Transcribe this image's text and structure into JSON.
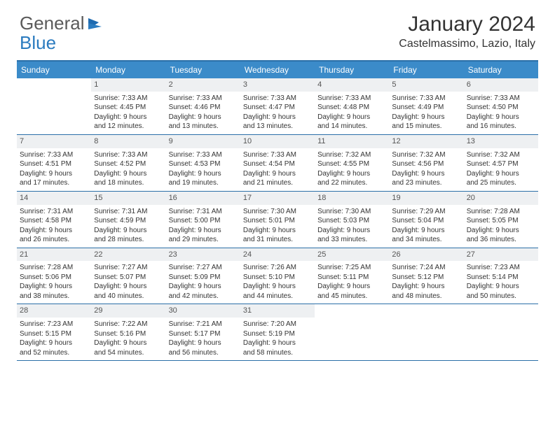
{
  "brand": {
    "word1": "General",
    "word2": "Blue"
  },
  "header": {
    "month_title": "January 2024",
    "location": "Castelmassimo, Lazio, Italy"
  },
  "colors": {
    "header_bar": "#3b8bc9",
    "rule": "#2b6fa8",
    "daynum_bg": "#eef0f2",
    "text": "#333333",
    "logo_gray": "#5a5a5a",
    "logo_blue": "#2b7bbf"
  },
  "days_of_week": [
    "Sunday",
    "Monday",
    "Tuesday",
    "Wednesday",
    "Thursday",
    "Friday",
    "Saturday"
  ],
  "weeks": [
    [
      {
        "n": "",
        "l1": "",
        "l2": "",
        "l3": "",
        "l4": ""
      },
      {
        "n": "1",
        "l1": "Sunrise: 7:33 AM",
        "l2": "Sunset: 4:45 PM",
        "l3": "Daylight: 9 hours",
        "l4": "and 12 minutes."
      },
      {
        "n": "2",
        "l1": "Sunrise: 7:33 AM",
        "l2": "Sunset: 4:46 PM",
        "l3": "Daylight: 9 hours",
        "l4": "and 13 minutes."
      },
      {
        "n": "3",
        "l1": "Sunrise: 7:33 AM",
        "l2": "Sunset: 4:47 PM",
        "l3": "Daylight: 9 hours",
        "l4": "and 13 minutes."
      },
      {
        "n": "4",
        "l1": "Sunrise: 7:33 AM",
        "l2": "Sunset: 4:48 PM",
        "l3": "Daylight: 9 hours",
        "l4": "and 14 minutes."
      },
      {
        "n": "5",
        "l1": "Sunrise: 7:33 AM",
        "l2": "Sunset: 4:49 PM",
        "l3": "Daylight: 9 hours",
        "l4": "and 15 minutes."
      },
      {
        "n": "6",
        "l1": "Sunrise: 7:33 AM",
        "l2": "Sunset: 4:50 PM",
        "l3": "Daylight: 9 hours",
        "l4": "and 16 minutes."
      }
    ],
    [
      {
        "n": "7",
        "l1": "Sunrise: 7:33 AM",
        "l2": "Sunset: 4:51 PM",
        "l3": "Daylight: 9 hours",
        "l4": "and 17 minutes."
      },
      {
        "n": "8",
        "l1": "Sunrise: 7:33 AM",
        "l2": "Sunset: 4:52 PM",
        "l3": "Daylight: 9 hours",
        "l4": "and 18 minutes."
      },
      {
        "n": "9",
        "l1": "Sunrise: 7:33 AM",
        "l2": "Sunset: 4:53 PM",
        "l3": "Daylight: 9 hours",
        "l4": "and 19 minutes."
      },
      {
        "n": "10",
        "l1": "Sunrise: 7:33 AM",
        "l2": "Sunset: 4:54 PM",
        "l3": "Daylight: 9 hours",
        "l4": "and 21 minutes."
      },
      {
        "n": "11",
        "l1": "Sunrise: 7:32 AM",
        "l2": "Sunset: 4:55 PM",
        "l3": "Daylight: 9 hours",
        "l4": "and 22 minutes."
      },
      {
        "n": "12",
        "l1": "Sunrise: 7:32 AM",
        "l2": "Sunset: 4:56 PM",
        "l3": "Daylight: 9 hours",
        "l4": "and 23 minutes."
      },
      {
        "n": "13",
        "l1": "Sunrise: 7:32 AM",
        "l2": "Sunset: 4:57 PM",
        "l3": "Daylight: 9 hours",
        "l4": "and 25 minutes."
      }
    ],
    [
      {
        "n": "14",
        "l1": "Sunrise: 7:31 AM",
        "l2": "Sunset: 4:58 PM",
        "l3": "Daylight: 9 hours",
        "l4": "and 26 minutes."
      },
      {
        "n": "15",
        "l1": "Sunrise: 7:31 AM",
        "l2": "Sunset: 4:59 PM",
        "l3": "Daylight: 9 hours",
        "l4": "and 28 minutes."
      },
      {
        "n": "16",
        "l1": "Sunrise: 7:31 AM",
        "l2": "Sunset: 5:00 PM",
        "l3": "Daylight: 9 hours",
        "l4": "and 29 minutes."
      },
      {
        "n": "17",
        "l1": "Sunrise: 7:30 AM",
        "l2": "Sunset: 5:01 PM",
        "l3": "Daylight: 9 hours",
        "l4": "and 31 minutes."
      },
      {
        "n": "18",
        "l1": "Sunrise: 7:30 AM",
        "l2": "Sunset: 5:03 PM",
        "l3": "Daylight: 9 hours",
        "l4": "and 33 minutes."
      },
      {
        "n": "19",
        "l1": "Sunrise: 7:29 AM",
        "l2": "Sunset: 5:04 PM",
        "l3": "Daylight: 9 hours",
        "l4": "and 34 minutes."
      },
      {
        "n": "20",
        "l1": "Sunrise: 7:28 AM",
        "l2": "Sunset: 5:05 PM",
        "l3": "Daylight: 9 hours",
        "l4": "and 36 minutes."
      }
    ],
    [
      {
        "n": "21",
        "l1": "Sunrise: 7:28 AM",
        "l2": "Sunset: 5:06 PM",
        "l3": "Daylight: 9 hours",
        "l4": "and 38 minutes."
      },
      {
        "n": "22",
        "l1": "Sunrise: 7:27 AM",
        "l2": "Sunset: 5:07 PM",
        "l3": "Daylight: 9 hours",
        "l4": "and 40 minutes."
      },
      {
        "n": "23",
        "l1": "Sunrise: 7:27 AM",
        "l2": "Sunset: 5:09 PM",
        "l3": "Daylight: 9 hours",
        "l4": "and 42 minutes."
      },
      {
        "n": "24",
        "l1": "Sunrise: 7:26 AM",
        "l2": "Sunset: 5:10 PM",
        "l3": "Daylight: 9 hours",
        "l4": "and 44 minutes."
      },
      {
        "n": "25",
        "l1": "Sunrise: 7:25 AM",
        "l2": "Sunset: 5:11 PM",
        "l3": "Daylight: 9 hours",
        "l4": "and 45 minutes."
      },
      {
        "n": "26",
        "l1": "Sunrise: 7:24 AM",
        "l2": "Sunset: 5:12 PM",
        "l3": "Daylight: 9 hours",
        "l4": "and 48 minutes."
      },
      {
        "n": "27",
        "l1": "Sunrise: 7:23 AM",
        "l2": "Sunset: 5:14 PM",
        "l3": "Daylight: 9 hours",
        "l4": "and 50 minutes."
      }
    ],
    [
      {
        "n": "28",
        "l1": "Sunrise: 7:23 AM",
        "l2": "Sunset: 5:15 PM",
        "l3": "Daylight: 9 hours",
        "l4": "and 52 minutes."
      },
      {
        "n": "29",
        "l1": "Sunrise: 7:22 AM",
        "l2": "Sunset: 5:16 PM",
        "l3": "Daylight: 9 hours",
        "l4": "and 54 minutes."
      },
      {
        "n": "30",
        "l1": "Sunrise: 7:21 AM",
        "l2": "Sunset: 5:17 PM",
        "l3": "Daylight: 9 hours",
        "l4": "and 56 minutes."
      },
      {
        "n": "31",
        "l1": "Sunrise: 7:20 AM",
        "l2": "Sunset: 5:19 PM",
        "l3": "Daylight: 9 hours",
        "l4": "and 58 minutes."
      },
      {
        "n": "",
        "l1": "",
        "l2": "",
        "l3": "",
        "l4": ""
      },
      {
        "n": "",
        "l1": "",
        "l2": "",
        "l3": "",
        "l4": ""
      },
      {
        "n": "",
        "l1": "",
        "l2": "",
        "l3": "",
        "l4": ""
      }
    ]
  ]
}
